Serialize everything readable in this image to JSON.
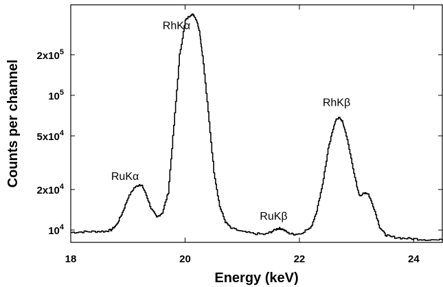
{
  "chart_data": {
    "type": "line",
    "title": "",
    "xlabel": "Energy (keV)",
    "ylabel": "Counts per channel",
    "xlim": [
      18,
      24.5
    ],
    "ylim": [
      8100,
      470000
    ],
    "y_scale": "log",
    "grid": false,
    "legend": "none",
    "x_ticks": [
      {
        "value": 18,
        "label": "18"
      },
      {
        "value": 20,
        "label": "20"
      },
      {
        "value": 22,
        "label": "22"
      },
      {
        "value": 24,
        "label": "24"
      }
    ],
    "y_ticks": [
      {
        "value": 10000,
        "base": "10",
        "exp": "4"
      },
      {
        "value": 20000,
        "base": "2x10",
        "exp": "4"
      },
      {
        "value": 50000,
        "base": "5x10",
        "exp": "4"
      },
      {
        "value": 100000,
        "base": "10",
        "exp": "5"
      },
      {
        "value": 200000,
        "base": "2x10",
        "exp": "5"
      }
    ],
    "annotations": [
      {
        "text": "RhKα",
        "x": 19.85,
        "y": 310000
      },
      {
        "text": "RuKα",
        "x": 18.95,
        "y": 23500
      },
      {
        "text": "RuKβ",
        "x": 21.55,
        "y": 11900
      },
      {
        "text": "RhKβ",
        "x": 22.65,
        "y": 83000
      }
    ],
    "series": [
      {
        "color": "#000000",
        "x": [
          18.0,
          18.2,
          18.4,
          18.6,
          18.7,
          18.8,
          18.9,
          19.0,
          19.1,
          19.2,
          19.25,
          19.3,
          19.4,
          19.5,
          19.6,
          19.7,
          19.8,
          19.9,
          20.0,
          20.1,
          20.15,
          20.2,
          20.25,
          20.3,
          20.4,
          20.5,
          20.6,
          20.7,
          20.8,
          21.0,
          21.2,
          21.4,
          21.5,
          21.6,
          21.65,
          21.7,
          21.8,
          21.9,
          22.0,
          22.2,
          22.3,
          22.4,
          22.5,
          22.6,
          22.65,
          22.7,
          22.75,
          22.8,
          22.9,
          23.0,
          23.05,
          23.1,
          23.15,
          23.2,
          23.3,
          23.4,
          23.5,
          23.6,
          23.8,
          24.0,
          24.2,
          24.5
        ],
        "y": [
          9600,
          9700,
          9750,
          9800,
          10000,
          11000,
          13500,
          17500,
          20500,
          21800,
          21200,
          19000,
          14500,
          12400,
          13500,
          19000,
          60000,
          200000,
          360000,
          400000,
          395000,
          360000,
          300000,
          200000,
          75000,
          27000,
          15000,
          11500,
          10300,
          9700,
          9400,
          9300,
          9700,
          10200,
          10300,
          10150,
          9500,
          9300,
          9400,
          10500,
          14000,
          22000,
          40000,
          60000,
          67000,
          68000,
          64000,
          54000,
          34000,
          21000,
          18000,
          18400,
          19000,
          18500,
          14500,
          10500,
          9200,
          8900,
          8700,
          8600,
          8500,
          8400
        ]
      }
    ]
  }
}
